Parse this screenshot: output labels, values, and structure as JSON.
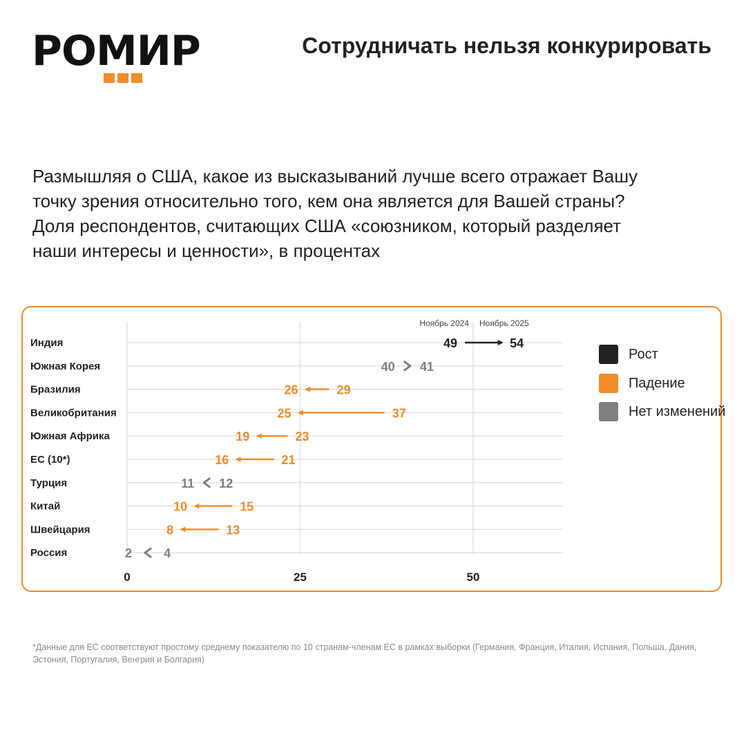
{
  "logo": {
    "text": "РОМИР",
    "text_color": "#111111",
    "square_color": "#f28c28"
  },
  "header": {
    "title": "Сотрудничать нельзя конкурировать"
  },
  "question": {
    "lines": [
      "Размышляя о США, какое из высказываний лучше всего отражает Вашу",
      "точку зрения относительно того, кем она является для Вашей страны?",
      "Доля респондентов, считающих США «союзником, который разделяет",
      "наши интересы и ценности», в процентах"
    ]
  },
  "chart_data": {
    "type": "dumbbell",
    "start_label": "Ноябрь 2024",
    "end_label": "Ноябрь 2025",
    "xlim": [
      0,
      63
    ],
    "xticks": [
      0,
      25,
      50
    ],
    "xlabel": "",
    "ylabel": "",
    "grid": true,
    "legend_placement": "right",
    "colors": {
      "rise": "#222222",
      "fall": "#f28c28",
      "none": "#7f7f7f"
    },
    "categories": [
      "Индия",
      "Южная Корея",
      "Бразилия",
      "Великобритания",
      "Южная Африка",
      "ЕС (10*)",
      "Турция",
      "Китай",
      "Швейцария",
      "Россия"
    ],
    "series": [
      {
        "name": "Ноябрь 2024",
        "values": [
          49,
          40,
          29,
          37,
          23,
          21,
          12,
          15,
          13,
          4
        ]
      },
      {
        "name": "Ноябрь 2025",
        "values": [
          54,
          41,
          26,
          25,
          19,
          16,
          11,
          10,
          8,
          2
        ]
      }
    ],
    "status": [
      "rise",
      "none",
      "fall",
      "fall",
      "fall",
      "fall",
      "none",
      "fall",
      "fall",
      "none"
    ],
    "legend": [
      {
        "key": "rise",
        "label": "Рост"
      },
      {
        "key": "fall",
        "label": "Падение"
      },
      {
        "key": "none",
        "label": "Нет изменений"
      }
    ]
  },
  "footnote": "*Данные для ЕС соответствуют простому среднему показателю по 10 странам-членам ЕС в рамках выборки (Германия, Франция, Италия, Испания, Польша, Дания, Эстония, Португалия, Венгрия и Болгария)"
}
